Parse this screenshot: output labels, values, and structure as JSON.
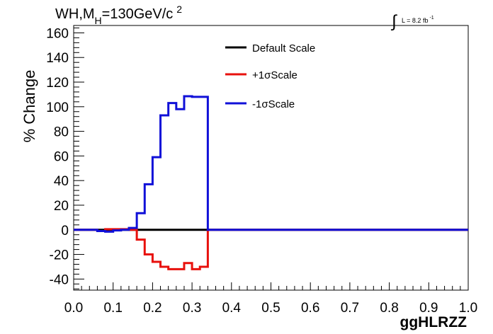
{
  "title": {
    "part1": "WH,M",
    "subscript": "H",
    "part2": "=130GeV/c",
    "superscript": "2"
  },
  "lumi": {
    "integral_symbol": "∫",
    "text": "L = 8.2 fb",
    "superscript": "-1"
  },
  "colors": {
    "default": "#000000",
    "plus": "#e8100c",
    "minus": "#1010d8"
  },
  "chart_data": {
    "type": "line",
    "step": true,
    "xlabel": "ggHLRZZ",
    "ylabel": "% Change",
    "xlim": [
      0.0,
      1.0
    ],
    "ylim": [
      -49,
      166
    ],
    "grid": false,
    "legend_placement": "top-center",
    "x_ticks": [
      "0.0",
      "0.1",
      "0.2",
      "0.3",
      "0.4",
      "0.5",
      "0.6",
      "0.7",
      "0.8",
      "0.9",
      "1.0"
    ],
    "y_ticks": [
      "-40",
      "-20",
      "0",
      "20",
      "40",
      "60",
      "80",
      "100",
      "120",
      "140",
      "160"
    ],
    "bin_edges": [
      0.0,
      0.06,
      0.08,
      0.1,
      0.12,
      0.14,
      0.16,
      0.18,
      0.2,
      0.22,
      0.24,
      0.26,
      0.28,
      0.3,
      0.32,
      0.34,
      1.0
    ],
    "series": [
      {
        "name": "Default Scale",
        "color_key": "default",
        "values": [
          0,
          0,
          0,
          0,
          0,
          0,
          0,
          0,
          0,
          0,
          0,
          0,
          0,
          0,
          0,
          0
        ]
      },
      {
        "name": "+1σScale",
        "color_key": "plus",
        "values": [
          0,
          -1,
          0.5,
          0.5,
          0.5,
          0,
          -8,
          -20,
          -26,
          -30,
          -32,
          -32,
          -27,
          -32,
          -30,
          0
        ]
      },
      {
        "name": "-1σScale",
        "color_key": "minus",
        "values": [
          0,
          -1,
          -1.5,
          -0.5,
          0,
          1.5,
          13.5,
          37,
          59,
          93,
          103,
          98,
          108.5,
          108,
          108,
          0
        ]
      }
    ]
  }
}
